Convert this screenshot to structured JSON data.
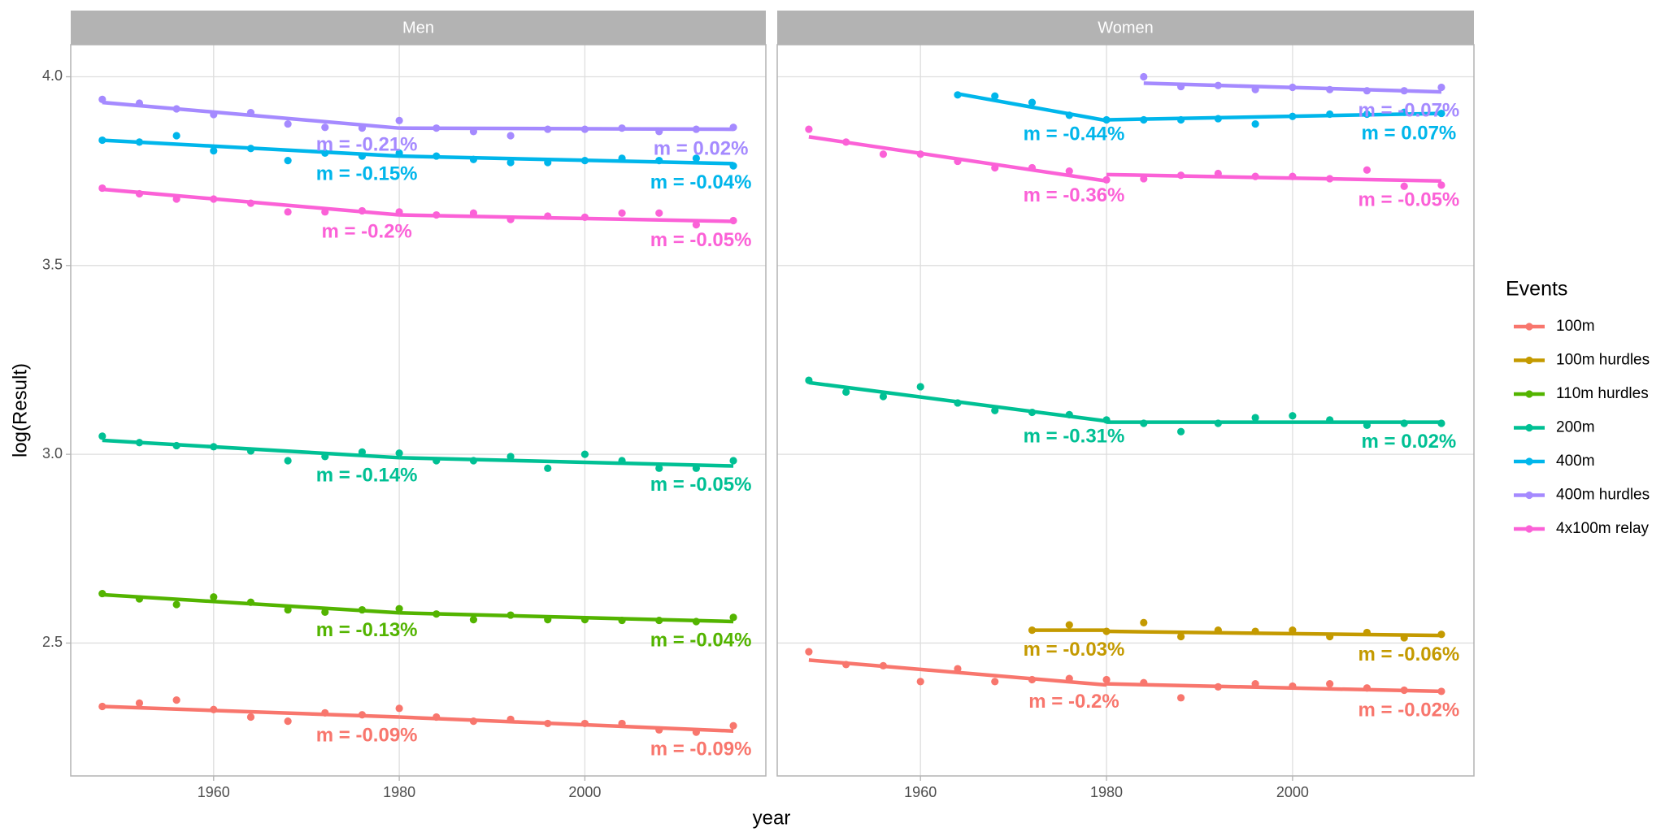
{
  "chart_data": [
    {
      "type": "scatter",
      "title": "Men",
      "x": [
        1948,
        1952,
        1956,
        1960,
        1964,
        1968,
        1972,
        1976,
        1980,
        1984,
        1988,
        1992,
        1996,
        2000,
        2004,
        2008,
        2012,
        2016
      ],
      "xlim": [
        1944.6,
        2019.5
      ],
      "ylim": [
        2.148,
        4.085
      ],
      "xticks": [
        1960,
        1980,
        2000
      ],
      "yticks": [
        2.5,
        {
          "value": 3,
          "label": "3.0"
        },
        3.5,
        {
          "value": 4,
          "label": "4.0"
        }
      ],
      "grid": true,
      "series": [
        {
          "name": "100m",
          "color": "#F8766D",
          "values": [
            2.332,
            2.341,
            2.349,
            2.324,
            2.304,
            2.293,
            2.315,
            2.31,
            2.327,
            2.304,
            2.293,
            2.298,
            2.287,
            2.287,
            2.287,
            2.27,
            2.264,
            2.281
          ],
          "fits": [
            {
              "x": [
                1948,
                1980
              ],
              "values": [
                2.332,
                2.304
              ],
              "label": "m = -0.09%"
            },
            {
              "x": [
                1980,
                2016
              ],
              "values": [
                2.304,
                2.267
              ],
              "label": "m = -0.09%"
            }
          ]
        },
        {
          "name": "110m hurdles",
          "color": "#53B400",
          "values": [
            2.631,
            2.617,
            2.602,
            2.622,
            2.608,
            2.588,
            2.582,
            2.588,
            2.591,
            2.577,
            2.562,
            2.574,
            2.562,
            2.562,
            2.56,
            2.56,
            2.557,
            2.568
          ],
          "fits": [
            {
              "x": [
                1948,
                1980
              ],
              "values": [
                2.628,
                2.58
              ],
              "label": "m = -0.13%"
            },
            {
              "x": [
                1980,
                2016
              ],
              "values": [
                2.58,
                2.557
              ],
              "label": "m = -0.04%"
            }
          ]
        },
        {
          "name": "200m",
          "color": "#00C094",
          "values": [
            3.048,
            3.031,
            3.023,
            3.02,
            3.009,
            2.983,
            2.994,
            3.006,
            3.003,
            2.983,
            2.983,
            2.994,
            2.963,
            3.0,
            2.983,
            2.963,
            2.963,
            2.983
          ],
          "fits": [
            {
              "x": [
                1948,
                1980
              ],
              "values": [
                3.037,
                2.991
              ],
              "label": "m = -0.14%"
            },
            {
              "x": [
                1980,
                2016
              ],
              "values": [
                2.991,
                2.969
              ],
              "label": "m = -0.05%"
            }
          ]
        },
        {
          "name": "400m",
          "color": "#00B6EB",
          "values": [
            3.832,
            3.827,
            3.844,
            3.804,
            3.81,
            3.778,
            3.798,
            3.79,
            3.798,
            3.79,
            3.781,
            3.773,
            3.773,
            3.778,
            3.784,
            3.778,
            3.784,
            3.764
          ],
          "fits": [
            {
              "x": [
                1948,
                1980
              ],
              "values": [
                3.832,
                3.79
              ],
              "label": "m = -0.15%"
            },
            {
              "x": [
                1980,
                2016
              ],
              "values": [
                3.79,
                3.77
              ],
              "label": "m = -0.04%"
            }
          ]
        },
        {
          "name": "400m hurdles",
          "color": "#A58AFF",
          "values": [
            3.94,
            3.93,
            3.915,
            3.9,
            3.905,
            3.875,
            3.866,
            3.864,
            3.884,
            3.864,
            3.855,
            3.844,
            3.861,
            3.861,
            3.864,
            3.855,
            3.861,
            3.866
          ],
          "fits": [
            {
              "x": [
                1948,
                1980
              ],
              "values": [
                3.932,
                3.864
              ],
              "label": "m = -0.21%"
            },
            {
              "x": [
                1980,
                2016
              ],
              "values": [
                3.864,
                3.861
              ],
              "label": "m = 0.02%"
            }
          ]
        },
        {
          "name": "4x100m relay",
          "color": "#FB61D7",
          "values": [
            3.705,
            3.69,
            3.676,
            3.676,
            3.665,
            3.642,
            3.642,
            3.645,
            3.642,
            3.634,
            3.639,
            3.622,
            3.631,
            3.628,
            3.639,
            3.639,
            3.608,
            3.619
          ],
          "fits": [
            {
              "x": [
                1948,
                1980
              ],
              "values": [
                3.702,
                3.634
              ],
              "label": "m = -0.2%"
            },
            {
              "x": [
                1980,
                2016
              ],
              "values": [
                3.634,
                3.617
              ],
              "label": "m = -0.05%"
            }
          ]
        }
      ]
    },
    {
      "type": "scatter",
      "title": "Women",
      "x": [
        1948,
        1952,
        1956,
        1960,
        1964,
        1968,
        1972,
        1976,
        1980,
        1984,
        1988,
        1992,
        1996,
        2000,
        2004,
        2008,
        2012,
        2016
      ],
      "xlim": [
        1944.6,
        2019.5
      ],
      "ylim": [
        2.148,
        4.085
      ],
      "xticks": [
        1960,
        1980,
        2000
      ],
      "grid": true,
      "series": [
        {
          "name": "100m",
          "color": "#F8766D",
          "values": [
            2.477,
            2.443,
            2.44,
            2.398,
            2.432,
            2.398,
            2.403,
            2.406,
            2.403,
            2.395,
            2.355,
            2.384,
            2.392,
            2.386,
            2.392,
            2.381,
            2.375,
            2.372
          ],
          "fits": [
            {
              "x": [
                1948,
                1980
              ],
              "values": [
                2.455,
                2.389
              ],
              "label": "m = -0.2%"
            },
            {
              "x": [
                1980,
                2016
              ],
              "values": [
                2.392,
                2.372
              ],
              "label": "m = -0.02%"
            }
          ]
        },
        {
          "name": "100m hurdles",
          "color": "#C49A00",
          "values": [
            null,
            null,
            null,
            null,
            null,
            null,
            2.534,
            2.548,
            2.531,
            2.554,
            2.517,
            2.534,
            2.531,
            2.534,
            2.517,
            2.528,
            2.514,
            2.523
          ],
          "fits": [
            {
              "x": [
                1972,
                1980
              ],
              "values": [
                2.534,
                2.534
              ],
              "label": "m = -0.03%"
            },
            {
              "x": [
                1980,
                2016
              ],
              "values": [
                2.531,
                2.52
              ],
              "label": "m = -0.06%"
            }
          ]
        },
        {
          "name": "200m",
          "color": "#00C094",
          "values": [
            3.196,
            3.165,
            3.153,
            3.179,
            3.136,
            3.116,
            3.111,
            3.105,
            3.091,
            3.082,
            3.06,
            3.082,
            3.097,
            3.102,
            3.091,
            3.077,
            3.082,
            3.082
          ],
          "fits": [
            {
              "x": [
                1948,
                1980
              ],
              "values": [
                3.19,
                3.088
              ],
              "label": "m = -0.31%"
            },
            {
              "x": [
                1980,
                2016
              ],
              "values": [
                3.085,
                3.085
              ],
              "label": "m = 0.02%"
            }
          ]
        },
        {
          "name": "400m",
          "color": "#00B6EB",
          "values": [
            null,
            null,
            null,
            null,
            3.952,
            3.949,
            3.932,
            3.898,
            3.886,
            3.886,
            3.886,
            3.889,
            3.875,
            3.895,
            3.901,
            3.901,
            3.906,
            3.903
          ],
          "fits": [
            {
              "x": [
                1964,
                1980
              ],
              "values": [
                3.955,
                3.884
              ],
              "label": "m = -0.44%"
            },
            {
              "x": [
                1980,
                2016
              ],
              "values": [
                3.886,
                3.903
              ],
              "label": "m = 0.07%"
            }
          ]
        },
        {
          "name": "400m hurdles",
          "color": "#A58AFF",
          "values": [
            null,
            null,
            null,
            null,
            null,
            null,
            null,
            null,
            null,
            4.0,
            3.974,
            3.977,
            3.966,
            3.972,
            3.966,
            3.963,
            3.963,
            3.972
          ],
          "fits": [
            {
              "x": [
                1984,
                2016
              ],
              "values": [
                3.983,
                3.96
              ],
              "label": "m = -0.07%"
            }
          ]
        },
        {
          "name": "4x100m relay",
          "color": "#FB61D7",
          "values": [
            3.861,
            3.827,
            3.795,
            3.795,
            3.776,
            3.759,
            3.759,
            3.75,
            3.727,
            3.73,
            3.739,
            3.744,
            3.736,
            3.736,
            3.73,
            3.753,
            3.71,
            3.713
          ],
          "fits": [
            {
              "x": [
                1948,
                1980
              ],
              "values": [
                3.841,
                3.724
              ],
              "label": "m = -0.36%"
            },
            {
              "x": [
                1980,
                2016
              ],
              "values": [
                3.741,
                3.724
              ],
              "label": "m = -0.05%"
            }
          ]
        }
      ]
    }
  ],
  "xlabel": "year",
  "ylabel": "log(Result)",
  "legend": {
    "title": "Events",
    "position": "right",
    "entries": [
      {
        "name": "100m",
        "color": "#F8766D"
      },
      {
        "name": "100m hurdles",
        "color": "#C49A00"
      },
      {
        "name": "110m hurdles",
        "color": "#53B400"
      },
      {
        "name": "200m",
        "color": "#00C094"
      },
      {
        "name": "400m",
        "color": "#00B6EB"
      },
      {
        "name": "400m hurdles",
        "color": "#A58AFF"
      },
      {
        "name": "4x100m relay",
        "color": "#FB61D7"
      }
    ]
  }
}
